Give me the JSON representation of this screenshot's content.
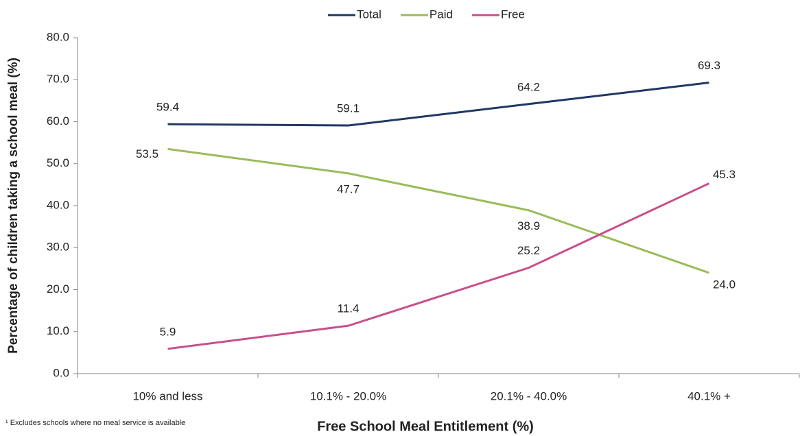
{
  "chart_data": {
    "type": "line",
    "y_label": "Percentage of children taking a school meal (%)",
    "x_label": "Free School Meal Entitlement (%)",
    "footnote": "¹ Excludes schools where no meal service is available",
    "categories": [
      "10% and less",
      "10.1% - 20.0%",
      "20.1% - 40.0%",
      "40.1% +"
    ],
    "series": [
      {
        "name": "Total",
        "color": "#1f3864",
        "values": [
          59.4,
          59.1,
          64.2,
          69.3
        ],
        "value_labels": [
          "59.4",
          "59.1",
          "64.2",
          "69.3"
        ]
      },
      {
        "name": "Paid",
        "color": "#9bbb59",
        "values": [
          53.5,
          47.7,
          38.9,
          24.0
        ],
        "value_labels": [
          "53.5",
          "47.7",
          "38.9",
          "24.0"
        ]
      },
      {
        "name": "Free",
        "color": "#c8508a",
        "values": [
          5.9,
          11.4,
          25.2,
          45.3
        ],
        "value_labels": [
          "5.9",
          "11.4",
          "25.2",
          "45.3"
        ]
      }
    ],
    "ylim": [
      0,
      80
    ],
    "yticks": [
      {
        "value": 0,
        "label": "0.0"
      },
      {
        "value": 10,
        "label": "10.0"
      },
      {
        "value": 20,
        "label": "20.0"
      },
      {
        "value": 30,
        "label": "30.0"
      },
      {
        "value": 40,
        "label": "40.0"
      },
      {
        "value": 50,
        "label": "50.0"
      },
      {
        "value": 60,
        "label": "60.0"
      },
      {
        "value": 70,
        "label": "70.0"
      },
      {
        "value": 80,
        "label": "80.0"
      }
    ],
    "legend": "top"
  }
}
